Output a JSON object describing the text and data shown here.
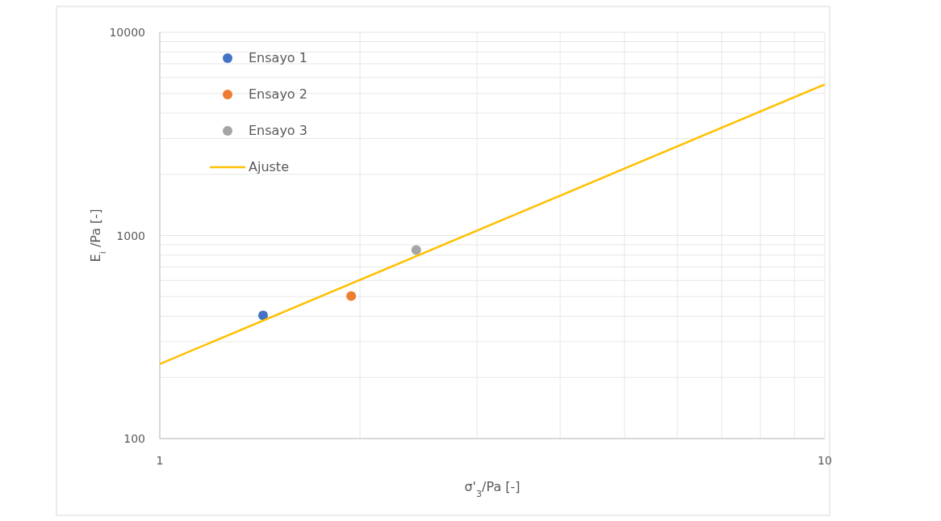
{
  "chart_data": {
    "type": "scatter",
    "xlabel": "σ'$_{3}$/Pa [-]",
    "ylabel": "E$_{i}$ /Pa [-]",
    "log": "xy",
    "grid": true,
    "legend": "top left",
    "xlim": [
      1,
      10
    ],
    "xticks": [
      1,
      {
        "value": 2,
        "label": null
      },
      {
        "value": 3,
        "label": null
      },
      {
        "value": 4,
        "label": null
      },
      {
        "value": 5,
        "label": null
      },
      {
        "value": 6,
        "label": null
      },
      {
        "value": 7,
        "label": null
      },
      {
        "value": 8,
        "label": null
      },
      {
        "value": 9,
        "label": null
      },
      10
    ],
    "ylim": [
      100,
      10000
    ],
    "yticks": [
      100,
      {
        "value": 200,
        "label": null
      },
      {
        "value": 300,
        "label": null
      },
      {
        "value": 400,
        "label": null
      },
      {
        "value": 500,
        "label": null
      },
      {
        "value": 600,
        "label": null
      },
      {
        "value": 700,
        "label": null
      },
      {
        "value": 800,
        "label": null
      },
      {
        "value": 900,
        "label": null
      },
      1000,
      {
        "value": 2000,
        "label": null
      },
      {
        "value": 3000,
        "label": null
      },
      {
        "value": 4000,
        "label": null
      },
      {
        "value": 5000,
        "label": null
      },
      {
        "value": 6000,
        "label": null
      },
      {
        "value": 7000,
        "label": null
      },
      {
        "value": 8000,
        "label": null
      },
      {
        "value": 9000,
        "label": null
      },
      10000
    ],
    "series": [
      {
        "name": "Ensayo 1",
        "color": "#4472c4",
        "marker": "circle",
        "x": [
          1.43
        ],
        "values": [
          404
        ]
      },
      {
        "name": "Ensayo 2",
        "color": "#ed7d31",
        "marker": "circle",
        "x": [
          1.94
        ],
        "values": [
          503
        ]
      },
      {
        "name": "Ensayo 3",
        "color": "#a5a5a5",
        "marker": "circle",
        "x": [
          2.43
        ],
        "values": [
          848
        ]
      },
      {
        "name": "Ajuste",
        "type": "line",
        "marker": "none",
        "color": "#ffc000",
        "x": [
          1,
          10
        ],
        "values": [
          233,
          5540
        ]
      }
    ]
  }
}
